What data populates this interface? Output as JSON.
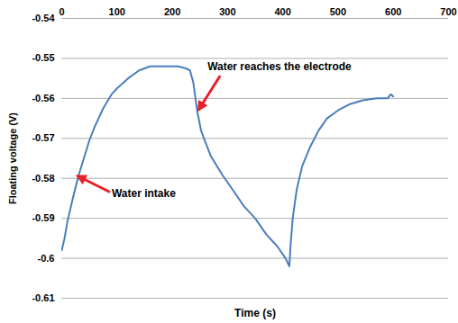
{
  "chart_data": {
    "type": "line",
    "x_label": "Time (s)",
    "y_label": "Floating voltage (V)",
    "x": [
      0,
      5,
      10,
      20,
      30,
      40,
      50,
      60,
      75,
      90,
      100,
      120,
      140,
      160,
      210,
      225,
      232,
      238,
      245,
      252,
      260,
      270,
      290,
      310,
      330,
      350,
      370,
      390,
      405,
      412,
      414,
      418,
      425,
      435,
      450,
      465,
      480,
      500,
      520,
      545,
      570,
      590,
      595,
      600
    ],
    "values": [
      -0.598,
      -0.595,
      -0.591,
      -0.585,
      -0.5795,
      -0.575,
      -0.5705,
      -0.567,
      -0.5625,
      -0.559,
      -0.5575,
      -0.555,
      -0.553,
      -0.552,
      -0.552,
      -0.5525,
      -0.553,
      -0.556,
      -0.563,
      -0.568,
      -0.571,
      -0.5745,
      -0.579,
      -0.583,
      -0.587,
      -0.59,
      -0.594,
      -0.597,
      -0.6,
      -0.602,
      -0.597,
      -0.59,
      -0.583,
      -0.577,
      -0.572,
      -0.568,
      -0.565,
      -0.563,
      -0.5615,
      -0.5605,
      -0.56,
      -0.56,
      -0.559,
      -0.5595
    ],
    "color": "#4a7ebb",
    "xlim": [
      0,
      700
    ],
    "xticks": [
      0,
      100,
      200,
      300,
      400,
      500,
      600,
      700
    ],
    "ylim": [
      -0.61,
      -0.54
    ],
    "yticks": [
      -0.61,
      -0.6,
      -0.59,
      -0.58,
      -0.57,
      -0.56,
      -0.55,
      -0.54
    ],
    "grid": true,
    "annotations": [
      {
        "text": "Water intake",
        "x": 26,
        "y": -0.5795
      },
      {
        "text": "Water reaches the electrode",
        "x": 245,
        "y": -0.563
      }
    ]
  }
}
